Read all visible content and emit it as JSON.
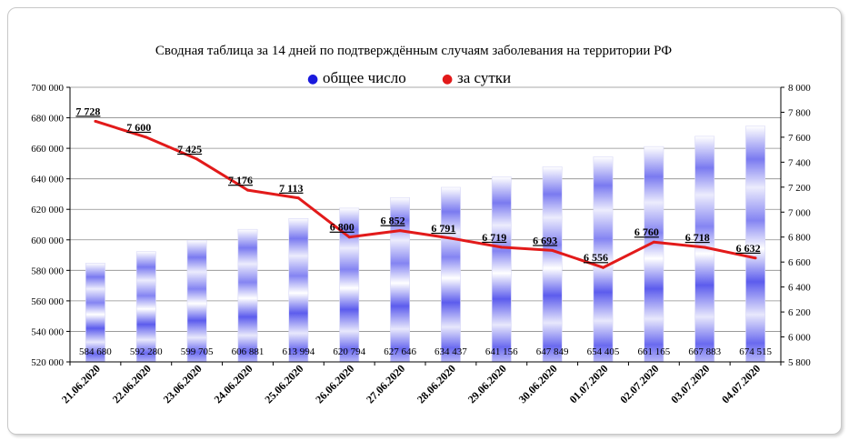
{
  "chart_data": {
    "type": "bar",
    "title": "Сводная таблица за 14 дней по подтверждённым случаям заболевания на территории РФ",
    "legend_position": "top-center",
    "categories": [
      "21.06.2020",
      "22.06.2020",
      "23.06.2020",
      "24.06.2020",
      "25.06.2020",
      "26.06.2020",
      "27.06.2020",
      "28.06.2020",
      "29.06.2020",
      "30.06.2020",
      "01.07.2020",
      "02.07.2020",
      "03.07.2020",
      "04.07.2020"
    ],
    "series": [
      {
        "name": "общее число",
        "type": "bar",
        "axis": "left",
        "color": "#3333ee",
        "values": [
          584680,
          592280,
          599705,
          606881,
          613994,
          620794,
          627646,
          634437,
          641156,
          647849,
          654405,
          661165,
          667883,
          674515
        ],
        "labels": [
          "584 680",
          "592 280",
          "599 705",
          "606 881",
          "613 994",
          "620 794",
          "627 646",
          "634 437",
          "641 156",
          "647 849",
          "654 405",
          "661 165",
          "667 883",
          "674 515"
        ]
      },
      {
        "name": "за сутки",
        "type": "line",
        "axis": "right",
        "color": "#e21a1a",
        "values": [
          7728,
          7600,
          7425,
          7176,
          7113,
          6800,
          6852,
          6791,
          6719,
          6693,
          6556,
          6760,
          6718,
          6632
        ],
        "labels": [
          "7 728",
          "7 600",
          "7 425",
          "7 176",
          "7 113",
          "6 800",
          "6 852",
          "6 791",
          "6 719",
          "6 693",
          "6 556",
          "6 760",
          "6 718",
          "6 632"
        ]
      }
    ],
    "y_left": {
      "min": 520000,
      "max": 700000,
      "ticks": [
        "520 000",
        "540 000",
        "560 000",
        "580 000",
        "600 000",
        "620 000",
        "640 000",
        "660 000",
        "680 000",
        "700 000"
      ]
    },
    "y_right": {
      "min": 5800,
      "max": 8000,
      "ticks": [
        "5 800",
        "6 000",
        "6 200",
        "6 400",
        "6 600",
        "6 800",
        "7 000",
        "7 200",
        "7 400",
        "7 600",
        "7 800",
        "8 000"
      ]
    },
    "grid": true,
    "legend_markers": [
      "●",
      "●"
    ]
  }
}
